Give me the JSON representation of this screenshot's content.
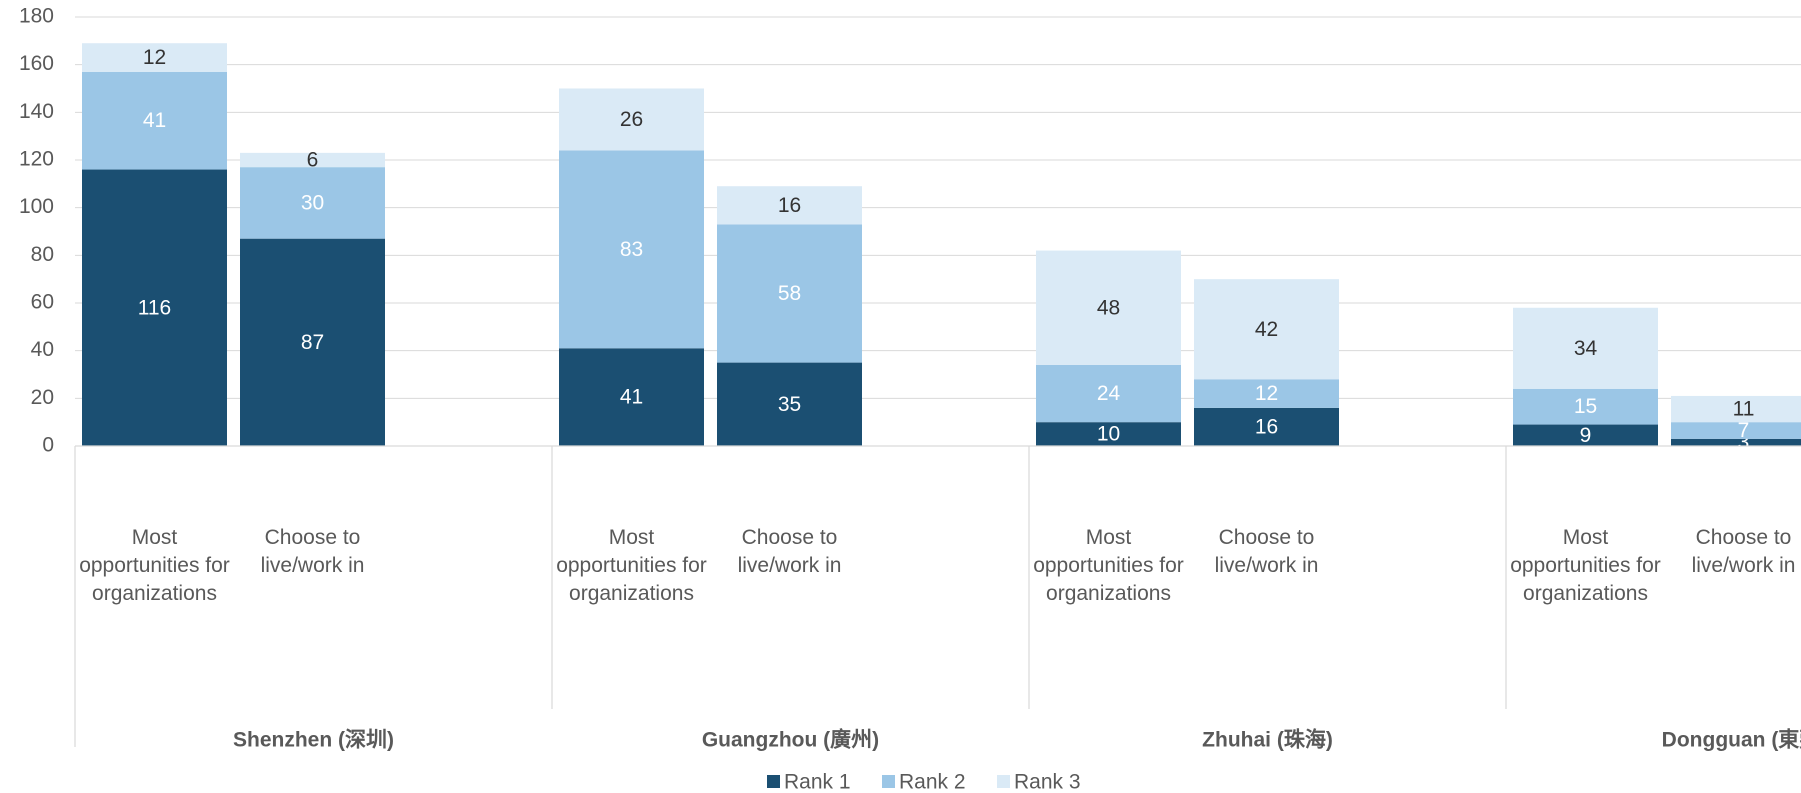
{
  "chart_data": {
    "type": "stacked-bar",
    "groups": [
      "Shenzhen (深圳)",
      "Guangzhou (廣州)",
      "Zhuhai (珠海)",
      "Dongguan (東莞)"
    ],
    "categories": [
      "Most opportunities for organizations",
      "Choose to live/work in",
      "Most opportunities for organizations",
      "Choose to live/work in",
      "Most opportunities for organizations",
      "Choose to live/work in",
      "Most opportunities for organizations",
      "Choose to live/work in"
    ],
    "series": [
      {
        "name": "Rank 1",
        "color": "#1b4f72",
        "label_color": "#ffffff",
        "values": [
          116,
          87,
          41,
          35,
          10,
          16,
          9,
          3
        ]
      },
      {
        "name": "Rank 2",
        "color": "#9bc6e6",
        "label_color": "#ffffff",
        "values": [
          41,
          30,
          83,
          58,
          24,
          12,
          15,
          7
        ]
      },
      {
        "name": "Rank 3",
        "color": "#daeaf6",
        "label_color": "#333333",
        "values": [
          12,
          6,
          26,
          16,
          48,
          42,
          34,
          11
        ]
      }
    ],
    "ylim": [
      0,
      180
    ],
    "yticks": [
      0,
      20,
      40,
      60,
      80,
      100,
      120,
      140,
      160,
      180
    ],
    "grid": true,
    "legend": "bottom"
  }
}
